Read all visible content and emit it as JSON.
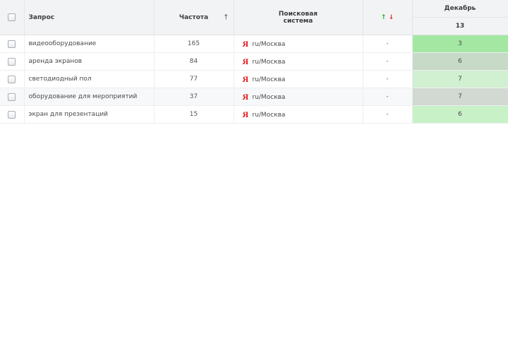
{
  "header": {
    "query": "Запрос",
    "frequency": "Частота",
    "frequency_sort_icon": "↑",
    "search_engine_line1": "Поисковая",
    "search_engine_line2": "система",
    "change_up": "↑",
    "change_down": "↓",
    "month": "Декабрь",
    "day": "13"
  },
  "rows": [
    {
      "query": "видеооборудование",
      "frequency": "165",
      "engine_icon": "yandex-icon",
      "region": "ru/Москва",
      "change": "-",
      "position": "3",
      "position_color": "#a3e7a3"
    },
    {
      "query": "аренда экранов",
      "frequency": "84",
      "engine_icon": "yandex-icon",
      "region": "ru/Москва",
      "change": "-",
      "position": "6",
      "position_color": "#c7d9c7"
    },
    {
      "query": "светодиодный пол",
      "frequency": "77",
      "engine_icon": "yandex-icon",
      "region": "ru/Москва",
      "change": "-",
      "position": "7",
      "position_color": "#d1efd1"
    },
    {
      "query": "оборудование для мероприятий",
      "frequency": "37",
      "engine_icon": "yandex-icon",
      "region": "ru/Москва",
      "change": "-",
      "position": "7",
      "position_color": "#d2d8d2"
    },
    {
      "query": "экран для презентаций",
      "frequency": "15",
      "engine_icon": "yandex-icon",
      "region": "ru/Москва",
      "change": "-",
      "position": "6",
      "position_color": "#c8f1c8"
    }
  ]
}
